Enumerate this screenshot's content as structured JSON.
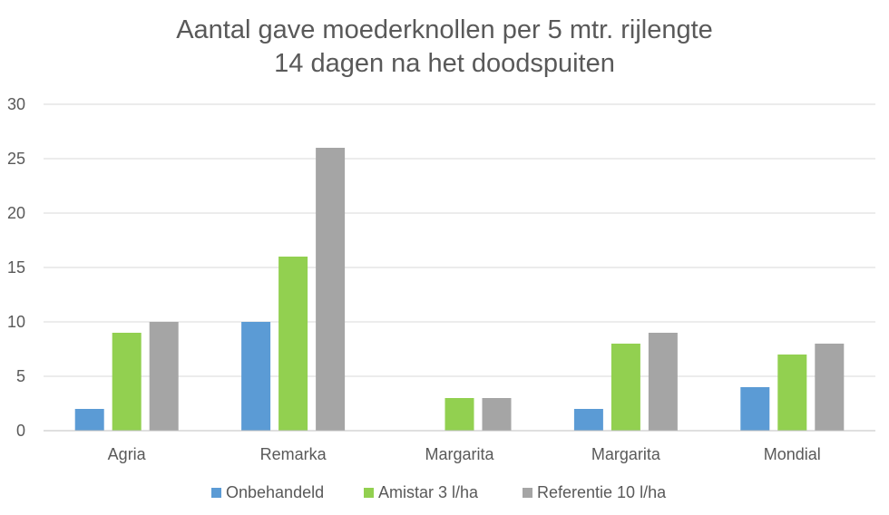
{
  "chart_data": {
    "type": "bar",
    "title": "Aantal gave moederknollen per 5 mtr. rijlengte",
    "subtitle": "14 dagen na het doodspuiten",
    "categories": [
      "Agria",
      "Remarka",
      "Margarita",
      "Margarita",
      "Mondial"
    ],
    "series": [
      {
        "name": "Onbehandeld",
        "color": "#5B9BD5",
        "values": [
          2,
          10,
          0,
          2,
          4
        ]
      },
      {
        "name": "Amistar 3 l/ha",
        "color": "#92D050",
        "values": [
          9,
          16,
          3,
          8,
          7
        ]
      },
      {
        "name": "Referentie 10 l/ha",
        "color": "#A5A5A5",
        "values": [
          10,
          26,
          3,
          9,
          8
        ]
      }
    ],
    "yticks": [
      0,
      5,
      10,
      15,
      20,
      25,
      30
    ],
    "ylim": [
      0,
      30
    ],
    "xlabel": "",
    "ylabel": "",
    "grid": true,
    "legend_position": "bottom"
  }
}
